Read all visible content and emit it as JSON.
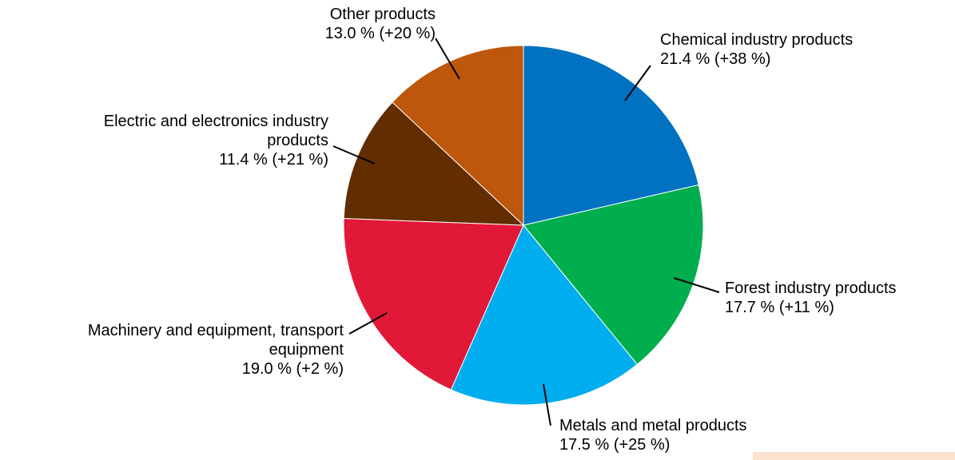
{
  "chart_data": {
    "type": "pie",
    "slices": [
      {
        "label_lines": [
          "Chemical industry products"
        ],
        "value": 21.4,
        "value_label": "21.4 % (+38 %)",
        "color": "#0072c1"
      },
      {
        "label_lines": [
          "Forest industry products"
        ],
        "value": 17.7,
        "value_label": "17.7 % (+11 %)",
        "color": "#00ae4e"
      },
      {
        "label_lines": [
          "Metals and metal products"
        ],
        "value": 17.5,
        "value_label": "17.5 % (+25 %)",
        "color": "#00aeef"
      },
      {
        "label_lines": [
          "Machinery and equipment, transport",
          "equipment"
        ],
        "value": 19.0,
        "value_label": "19.0 % (+2 %)",
        "color": "#e11837"
      },
      {
        "label_lines": [
          "Electric and electronics industry",
          "products"
        ],
        "value": 11.4,
        "value_label": "11.4 % (+21 %)",
        "color": "#622d00"
      },
      {
        "label_lines": [
          "Other products"
        ],
        "value": 13.0,
        "value_label": "13.0 % (+20 %)",
        "color": "#bd570b"
      }
    ],
    "start_angle_deg": 0,
    "direction": "clockwise"
  },
  "page": {
    "corner_block_color": "#fde3cf"
  }
}
